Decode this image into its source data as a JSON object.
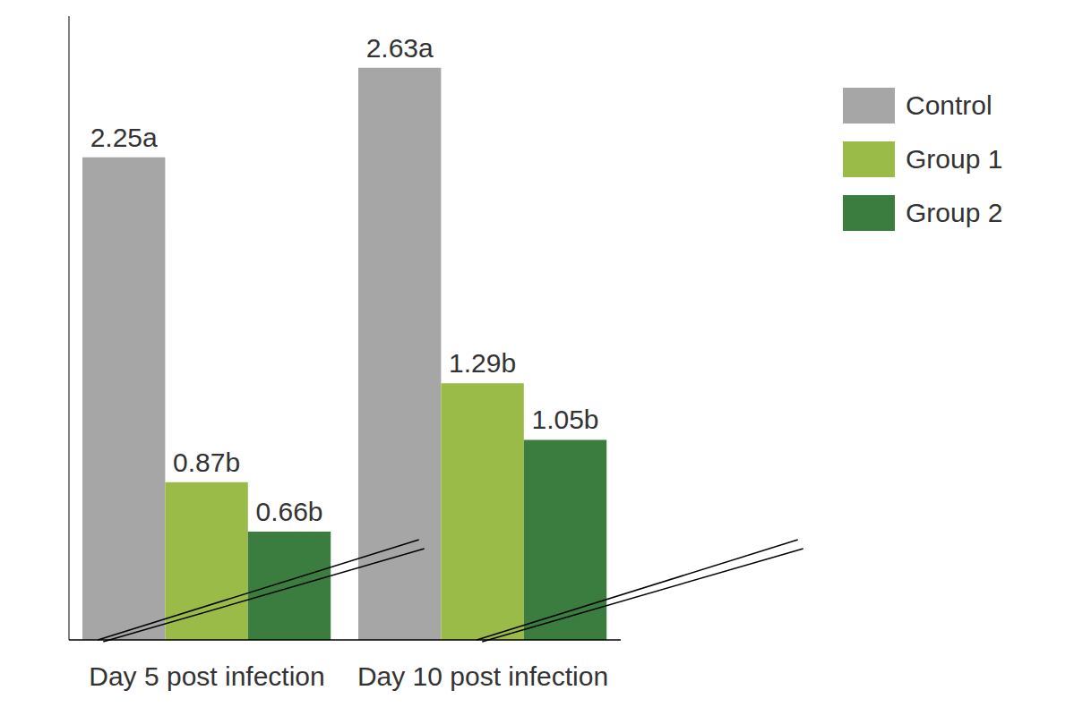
{
  "chart_data": {
    "type": "bar",
    "categories": [
      "Day 5 post infection",
      "Day 10 post infection"
    ],
    "series": [
      {
        "name": "Control",
        "color": "#a6a6a6",
        "values": [
          2.25,
          2.63
        ],
        "value_labels": [
          "2.25a",
          "2.63a"
        ]
      },
      {
        "name": "Group 1",
        "color": "#9bbb48",
        "values": [
          0.87,
          1.29
        ],
        "value_labels": [
          "0.87b",
          "1.29b"
        ]
      },
      {
        "name": "Group 2",
        "color": "#3b7d3f",
        "values": [
          0.66,
          1.05
        ],
        "value_labels": [
          "0.66b",
          "1.05b"
        ]
      }
    ],
    "ylim": [
      0.2,
      2.85
    ],
    "yticks": [],
    "data_labels": true,
    "tick_labels": "x",
    "legend": "upper right",
    "grid": false
  }
}
